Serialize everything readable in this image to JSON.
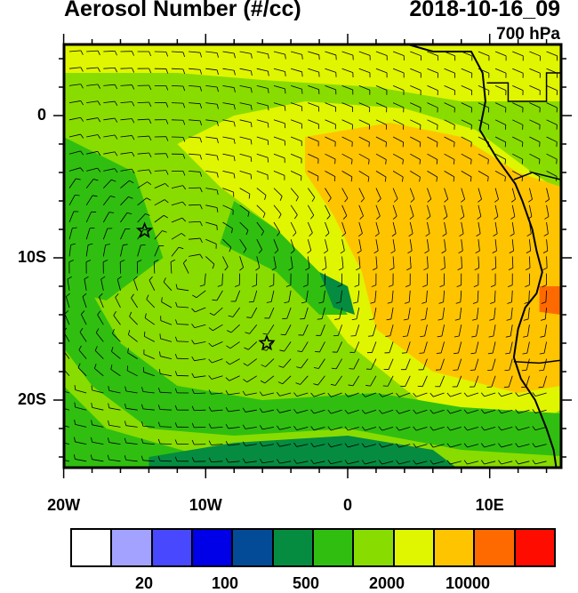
{
  "header": {
    "title": "Aerosol Number (#/cc)",
    "timestamp": "2018-10-16_09",
    "level": "700 hPa"
  },
  "chart_data": {
    "type": "heatmap",
    "title": "Aerosol Number (#/cc)",
    "lon_range": [
      -20,
      15
    ],
    "lat_range": [
      -25,
      5
    ],
    "x_ticks": [
      {
        "value": -20,
        "label": "20W"
      },
      {
        "value": -10,
        "label": "10W"
      },
      {
        "value": 0,
        "label": "0"
      },
      {
        "value": 10,
        "label": "10E"
      }
    ],
    "y_ticks": [
      {
        "value": 0,
        "label": "0"
      },
      {
        "value": -10,
        "label": "10S"
      },
      {
        "value": -20,
        "label": "20S"
      }
    ],
    "colorbar": {
      "colors": [
        "#ffffff",
        "#a3a3ff",
        "#4848ff",
        "#0000e8",
        "#034b96",
        "#058c40",
        "#30bf10",
        "#89dc00",
        "#e0f500",
        "#ffc400",
        "#ff6a00",
        "#ff0c00"
      ],
      "labels": [
        {
          "after_box": 2,
          "label": "20"
        },
        {
          "after_box": 4,
          "label": "100"
        },
        {
          "after_box": 6,
          "label": "500"
        },
        {
          "after_box": 8,
          "label": "2000"
        },
        {
          "after_box": 10,
          "label": "10000"
        }
      ]
    },
    "markers": [
      {
        "type": "star",
        "lon": -14.3,
        "lat": -8.1
      },
      {
        "type": "star",
        "lon": -5.7,
        "lat": -16.0
      }
    ],
    "overlay": "wind barbs"
  }
}
